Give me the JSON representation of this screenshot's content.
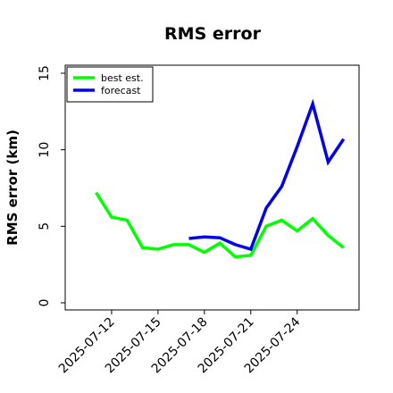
{
  "chart_data": {
    "type": "line",
    "title": "RMS error",
    "xlabel": "",
    "ylabel": "RMS error (km)",
    "ylim": [
      0,
      15
    ],
    "yticks": [
      0,
      5,
      10,
      15
    ],
    "xticks": [
      "2025-07-12",
      "2025-07-15",
      "2025-07-18",
      "2025-07-21",
      "2025-07-24"
    ],
    "xlim": [
      "2025-07-09",
      "2025-07-28"
    ],
    "grid": false,
    "legend_position": "top-left",
    "series": [
      {
        "name": "best est.",
        "color": "#00ff00",
        "x": [
          "2025-07-11",
          "2025-07-12",
          "2025-07-13",
          "2025-07-14",
          "2025-07-15",
          "2025-07-16",
          "2025-07-17",
          "2025-07-18",
          "2025-07-19",
          "2025-07-20",
          "2025-07-21",
          "2025-07-22",
          "2025-07-23",
          "2025-07-24",
          "2025-07-25",
          "2025-07-26",
          "2025-07-27"
        ],
        "y": [
          7.2,
          5.6,
          5.4,
          3.6,
          3.5,
          3.8,
          3.8,
          3.3,
          3.9,
          3.0,
          3.1,
          5.0,
          5.4,
          4.7,
          5.5,
          4.4,
          3.6
        ]
      },
      {
        "name": "forecast",
        "color": "#0000ee",
        "x": [
          "2025-07-17",
          "2025-07-18",
          "2025-07-19",
          "2025-07-20",
          "2025-07-21",
          "2025-07-22",
          "2025-07-23",
          "2025-07-24",
          "2025-07-25",
          "2025-07-26",
          "2025-07-27"
        ],
        "y": [
          4.2,
          4.3,
          4.25,
          3.8,
          3.5,
          6.2,
          7.6,
          10.2,
          13.0,
          9.2,
          10.7
        ]
      }
    ]
  }
}
